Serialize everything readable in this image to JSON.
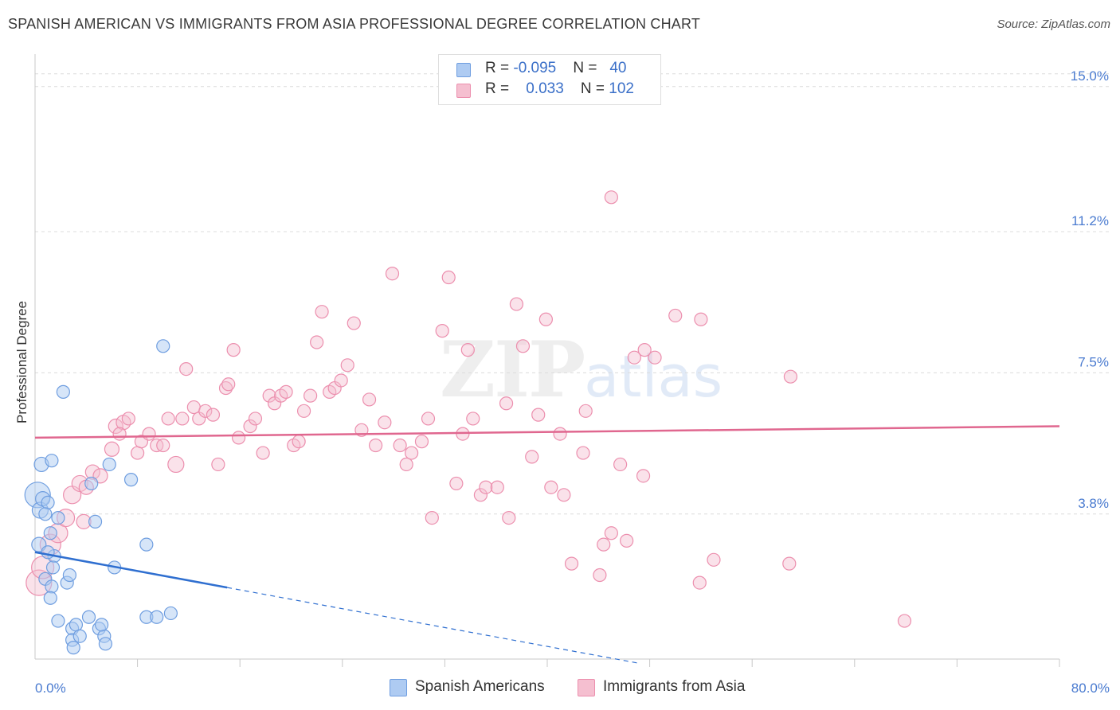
{
  "chart_data": {
    "type": "scatter",
    "title": "SPANISH AMERICAN VS IMMIGRANTS FROM ASIA PROFESSIONAL DEGREE CORRELATION CHART",
    "source": "Source: ZipAtlas.com",
    "xlabel": "",
    "ylabel": "Professional Degree",
    "xlim": [
      0,
      80
    ],
    "ylim": [
      0,
      15.6
    ],
    "x_tick_labels": [
      "0.0%",
      "80.0%"
    ],
    "y_ticks": [
      3.8,
      7.5,
      11.2,
      15.0
    ],
    "y_tick_labels": [
      "3.8%",
      "7.5%",
      "11.2%",
      "15.0%"
    ],
    "grid": true,
    "legend_position": "top-center",
    "watermark": {
      "zip": "ZIP",
      "atlas": "atlas"
    },
    "colors": {
      "blue_fill": "#aecbf2",
      "blue_stroke": "#6f9ee0",
      "blue_line": "#2f6fd0",
      "pink_fill": "#f5bfd0",
      "pink_stroke": "#ec8fae",
      "pink_line": "#e0678f"
    },
    "series": [
      {
        "name": "Spanish Americans",
        "legend": {
          "r_label": "R = ",
          "r_value": "-0.095",
          "n_label": "N = ",
          "n_value": "40"
        },
        "trend": {
          "x_start": 0,
          "y_start": 2.8,
          "x_solid_end": 15,
          "x_end": 47,
          "y_end": -0.1
        },
        "points": [
          [
            0.2,
            4.3,
            16
          ],
          [
            0.4,
            3.9,
            10
          ],
          [
            0.3,
            3.0,
            9
          ],
          [
            0.5,
            5.1,
            9
          ],
          [
            0.6,
            4.2,
            9
          ],
          [
            1.0,
            4.1,
            8
          ],
          [
            1.3,
            5.2,
            8
          ],
          [
            1.5,
            2.7,
            8
          ],
          [
            1.8,
            3.7,
            8
          ],
          [
            2.2,
            7.0,
            8
          ],
          [
            1.0,
            2.8,
            8
          ],
          [
            1.4,
            2.4,
            8
          ],
          [
            0.8,
            2.1,
            8
          ],
          [
            1.3,
            1.9,
            8
          ],
          [
            1.2,
            1.6,
            8
          ],
          [
            2.5,
            2.0,
            8
          ],
          [
            2.7,
            2.2,
            8
          ],
          [
            1.8,
            1.0,
            8
          ],
          [
            2.9,
            0.8,
            8
          ],
          [
            3.2,
            0.9,
            8
          ],
          [
            2.9,
            0.5,
            8
          ],
          [
            3.5,
            0.6,
            8
          ],
          [
            3.0,
            0.3,
            8
          ],
          [
            4.2,
            1.1,
            8
          ],
          [
            5.0,
            0.8,
            8
          ],
          [
            5.4,
            0.6,
            8
          ],
          [
            5.2,
            0.9,
            8
          ],
          [
            5.5,
            0.4,
            8
          ],
          [
            4.4,
            4.6,
            8
          ],
          [
            4.7,
            3.6,
            8
          ],
          [
            5.8,
            5.1,
            8
          ],
          [
            6.2,
            2.4,
            8
          ],
          [
            7.5,
            4.7,
            8
          ],
          [
            8.7,
            3.0,
            8
          ],
          [
            8.7,
            1.1,
            8
          ],
          [
            9.5,
            1.1,
            8
          ],
          [
            10.0,
            8.2,
            8
          ],
          [
            10.6,
            1.2,
            8
          ],
          [
            0.8,
            3.8,
            8
          ],
          [
            1.2,
            3.3,
            8
          ]
        ]
      },
      {
        "name": "Immigrants from Asia",
        "legend": {
          "r_label": "R = ",
          "r_value": "0.033",
          "n_label": "N = ",
          "n_value": "102"
        },
        "trend": {
          "x_start": 0,
          "y_start": 5.8,
          "x_end": 80,
          "y_end": 6.1
        },
        "points": [
          [
            0.3,
            2.0,
            16
          ],
          [
            0.6,
            2.4,
            14
          ],
          [
            1.2,
            3.0,
            13
          ],
          [
            1.8,
            3.3,
            12
          ],
          [
            2.4,
            3.7,
            11
          ],
          [
            2.9,
            4.3,
            11
          ],
          [
            3.5,
            4.6,
            10
          ],
          [
            4.0,
            4.5,
            9
          ],
          [
            4.5,
            4.9,
            9
          ],
          [
            5.1,
            4.8,
            9
          ],
          [
            6.0,
            5.5,
            9
          ],
          [
            6.3,
            6.1,
            9
          ],
          [
            6.9,
            6.2,
            9
          ],
          [
            7.3,
            6.3,
            8
          ],
          [
            8.0,
            5.4,
            8
          ],
          [
            8.3,
            5.7,
            8
          ],
          [
            8.9,
            5.9,
            8
          ],
          [
            9.5,
            5.6,
            8
          ],
          [
            10.0,
            5.6,
            8
          ],
          [
            10.4,
            6.3,
            8
          ],
          [
            11.0,
            5.1,
            10
          ],
          [
            11.5,
            6.3,
            8
          ],
          [
            11.8,
            7.6,
            8
          ],
          [
            12.4,
            6.6,
            8
          ],
          [
            12.8,
            6.3,
            8
          ],
          [
            13.3,
            6.5,
            8
          ],
          [
            13.9,
            6.4,
            8
          ],
          [
            14.3,
            5.1,
            8
          ],
          [
            14.9,
            7.1,
            8
          ],
          [
            15.1,
            7.2,
            8
          ],
          [
            15.5,
            8.1,
            8
          ],
          [
            15.9,
            5.8,
            8
          ],
          [
            16.8,
            6.1,
            8
          ],
          [
            17.2,
            6.3,
            8
          ],
          [
            17.8,
            5.4,
            8
          ],
          [
            18.3,
            6.9,
            8
          ],
          [
            18.7,
            6.7,
            8
          ],
          [
            19.2,
            6.9,
            8
          ],
          [
            19.6,
            7.0,
            8
          ],
          [
            20.2,
            5.6,
            8
          ],
          [
            20.6,
            5.7,
            8
          ],
          [
            21.0,
            6.5,
            8
          ],
          [
            21.5,
            6.9,
            8
          ],
          [
            22.0,
            8.3,
            8
          ],
          [
            22.4,
            9.1,
            8
          ],
          [
            23.0,
            7.0,
            8
          ],
          [
            23.4,
            7.1,
            8
          ],
          [
            23.9,
            7.3,
            8
          ],
          [
            24.4,
            7.7,
            8
          ],
          [
            24.9,
            8.8,
            8
          ],
          [
            25.5,
            6.0,
            8
          ],
          [
            26.1,
            6.8,
            8
          ],
          [
            26.6,
            5.6,
            8
          ],
          [
            27.3,
            6.2,
            8
          ],
          [
            27.9,
            10.1,
            8
          ],
          [
            28.5,
            5.6,
            8
          ],
          [
            29.0,
            5.1,
            8
          ],
          [
            29.4,
            5.4,
            8
          ],
          [
            30.2,
            5.7,
            8
          ],
          [
            30.7,
            6.3,
            8
          ],
          [
            31.0,
            3.7,
            8
          ],
          [
            31.8,
            8.6,
            8
          ],
          [
            32.3,
            10.0,
            8
          ],
          [
            32.9,
            4.6,
            8
          ],
          [
            33.4,
            5.9,
            8
          ],
          [
            33.8,
            8.1,
            8
          ],
          [
            34.2,
            6.3,
            8
          ],
          [
            34.8,
            4.3,
            8
          ],
          [
            35.2,
            4.5,
            8
          ],
          [
            36.1,
            4.5,
            8
          ],
          [
            36.8,
            6.7,
            8
          ],
          [
            37.0,
            3.7,
            8
          ],
          [
            37.6,
            9.3,
            8
          ],
          [
            38.1,
            8.2,
            8
          ],
          [
            38.8,
            5.3,
            8
          ],
          [
            39.3,
            6.4,
            8
          ],
          [
            39.9,
            8.9,
            8
          ],
          [
            40.3,
            4.5,
            8
          ],
          [
            41.0,
            5.9,
            8
          ],
          [
            41.3,
            4.3,
            8
          ],
          [
            41.9,
            2.5,
            8
          ],
          [
            42.8,
            5.4,
            8
          ],
          [
            43.0,
            6.5,
            8
          ],
          [
            44.1,
            2.2,
            8
          ],
          [
            44.4,
            3.0,
            8
          ],
          [
            45.0,
            3.3,
            8
          ],
          [
            45.7,
            5.1,
            8
          ],
          [
            46.2,
            3.1,
            8
          ],
          [
            46.8,
            7.9,
            8
          ],
          [
            47.5,
            4.8,
            8
          ],
          [
            47.6,
            8.1,
            8
          ],
          [
            48.4,
            7.9,
            8
          ],
          [
            45.0,
            12.1,
            8
          ],
          [
            50.0,
            9.0,
            8
          ],
          [
            52.0,
            8.9,
            8
          ],
          [
            51.9,
            2.0,
            8
          ],
          [
            53.0,
            2.6,
            8
          ],
          [
            59.0,
            7.4,
            8
          ],
          [
            58.9,
            2.5,
            8
          ],
          [
            67.9,
            1.0,
            8
          ],
          [
            3.8,
            3.6,
            9
          ],
          [
            6.6,
            5.9,
            8
          ]
        ]
      }
    ]
  }
}
